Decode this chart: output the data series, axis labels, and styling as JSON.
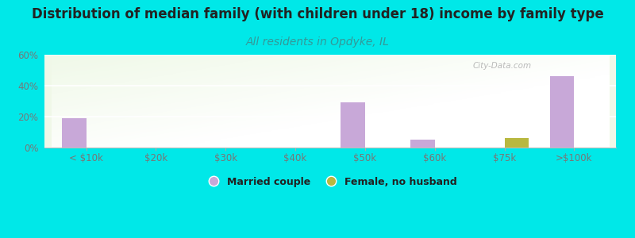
{
  "title": "Distribution of median family (with children under 18) income by family type",
  "subtitle": "All residents in Opdyke, IL",
  "categories": [
    "< $10k",
    "$20k",
    "$30k",
    "$40k",
    "$50k",
    "$60k",
    "$75k",
    ">$100k"
  ],
  "married_couple": [
    19,
    0,
    0,
    0,
    29,
    5,
    0,
    46
  ],
  "female_no_husband": [
    0,
    0,
    0,
    0,
    0,
    0,
    6,
    0
  ],
  "married_color": "#c8a8d8",
  "female_color": "#b8b840",
  "background_color": "#00e8e8",
  "ylim": [
    0,
    60
  ],
  "yticks": [
    0,
    20,
    40,
    60
  ],
  "ytick_labels": [
    "0%",
    "20%",
    "40%",
    "60%"
  ],
  "title_fontsize": 12,
  "subtitle_fontsize": 10,
  "bar_width": 0.35,
  "watermark": "City-Data.com",
  "subtitle_color": "#339999",
  "tick_label_color": "#777777",
  "title_color": "#222222"
}
